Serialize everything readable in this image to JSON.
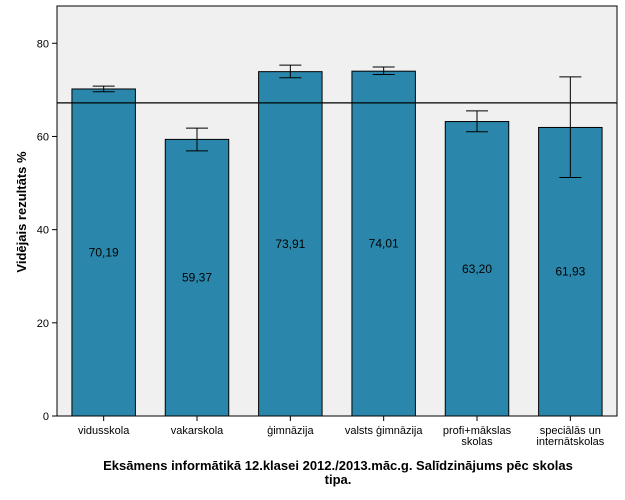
{
  "chart_data": {
    "type": "bar",
    "title_lines": [
      "Eksāmens informātikā 12.klasei 2012./2013.māc.g. Salīdzinājums pēc skolas",
      "tipa."
    ],
    "ylabel": "Vidējais rezultāts %",
    "xlabel": "",
    "ylim": [
      0,
      88
    ],
    "yticks": [
      0,
      20,
      40,
      60,
      80
    ],
    "reference_line": 67.2,
    "categories": [
      [
        "vidusskola"
      ],
      [
        "vakarskola"
      ],
      [
        "ģimnāzija"
      ],
      [
        "valsts ģimnāzija"
      ],
      [
        "profi+mākslas",
        "skolas"
      ],
      [
        "speciālās un",
        "internātskolas"
      ]
    ],
    "values": [
      70.19,
      59.37,
      73.91,
      74.01,
      63.2,
      61.93
    ],
    "value_labels": [
      "70,19",
      "59,37",
      "73,91",
      "74,01",
      "63,20",
      "61,93"
    ],
    "error_bars": [
      [
        69.6,
        70.8
      ],
      [
        56.9,
        61.8
      ],
      [
        72.6,
        75.3
      ],
      [
        73.3,
        74.9
      ],
      [
        61.0,
        65.5
      ],
      [
        51.2,
        72.8
      ]
    ],
    "bar_color": "#2a87ab",
    "plot_background": "#f0f0f0",
    "grid": false
  }
}
